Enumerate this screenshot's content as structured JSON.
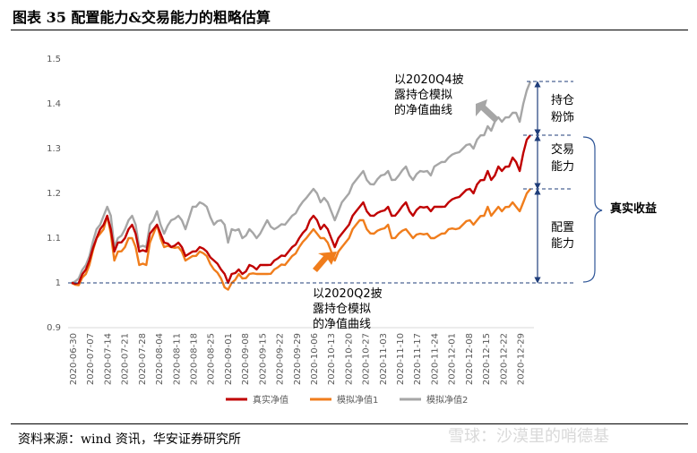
{
  "header": {
    "title": "图表 35  配置能力&交易能力的粗略估算"
  },
  "footer": {
    "source": "资料来源：wind 资讯，华安证券研究所",
    "watermark": "雪球：沙漠里的哨德基"
  },
  "chart_data": {
    "type": "line",
    "ylim": [
      0.9,
      1.5
    ],
    "yticks": [
      "0.9",
      "1",
      "1.1",
      "1.2",
      "1.3",
      "1.4",
      "1.5"
    ],
    "x_tick_labels": [
      "2020-06-30",
      "2020-07-07",
      "2020-07-14",
      "2020-07-21",
      "2020-07-28",
      "2020-08-04",
      "2020-08-11",
      "2020-08-18",
      "2020-08-25",
      "2020-09-01",
      "2020-09-08",
      "2020-09-15",
      "2020-09-22",
      "2020-09-29",
      "2020-10-06",
      "2020-10-13",
      "2020-10-20",
      "2020-10-27",
      "2020-11-03",
      "2020-11-10",
      "2020-11-17",
      "2020-11-24",
      "2020-12-01",
      "2020-12-08",
      "2020-12-15",
      "2020-12-22",
      "2020-12-29"
    ],
    "n_points": 130,
    "series": [
      {
        "name": "真实净值",
        "color": "#c00000",
        "anchors": [
          [
            0,
            1.0
          ],
          [
            2,
            1.0
          ],
          [
            4,
            1.03
          ],
          [
            5,
            1.05
          ],
          [
            7,
            1.1
          ],
          [
            8,
            1.12
          ],
          [
            9,
            1.13
          ],
          [
            10,
            1.15
          ],
          [
            11,
            1.12
          ],
          [
            12,
            1.07
          ],
          [
            13,
            1.09
          ],
          [
            15,
            1.1
          ],
          [
            16,
            1.12
          ],
          [
            17,
            1.13
          ],
          [
            18,
            1.11
          ],
          [
            19,
            1.07
          ],
          [
            21,
            1.07
          ],
          [
            22,
            1.11
          ],
          [
            23,
            1.12
          ],
          [
            24,
            1.13
          ],
          [
            25,
            1.11
          ],
          [
            26,
            1.09
          ],
          [
            28,
            1.08
          ],
          [
            30,
            1.09
          ],
          [
            31,
            1.08
          ],
          [
            32,
            1.06
          ],
          [
            34,
            1.07
          ],
          [
            36,
            1.08
          ],
          [
            38,
            1.07
          ],
          [
            40,
            1.05
          ],
          [
            42,
            1.03
          ],
          [
            43,
            1.02
          ],
          [
            44,
            1.0
          ],
          [
            45,
            1.02
          ],
          [
            47,
            1.03
          ],
          [
            48,
            1.02
          ],
          [
            50,
            1.04
          ],
          [
            52,
            1.03
          ],
          [
            53,
            1.04
          ],
          [
            55,
            1.04
          ],
          [
            57,
            1.05
          ],
          [
            60,
            1.06
          ],
          [
            62,
            1.08
          ],
          [
            64,
            1.1
          ],
          [
            66,
            1.12
          ],
          [
            67,
            1.14
          ],
          [
            68,
            1.15
          ],
          [
            69,
            1.14
          ],
          [
            70,
            1.12
          ],
          [
            71,
            1.13
          ],
          [
            72,
            1.12
          ],
          [
            73,
            1.1
          ],
          [
            74,
            1.08
          ],
          [
            75,
            1.1
          ],
          [
            76,
            1.11
          ],
          [
            77,
            1.12
          ],
          [
            78,
            1.13
          ],
          [
            79,
            1.15
          ],
          [
            80,
            1.16
          ],
          [
            81,
            1.17
          ],
          [
            82,
            1.18
          ],
          [
            83,
            1.16
          ],
          [
            85,
            1.15
          ],
          [
            87,
            1.16
          ],
          [
            89,
            1.17
          ],
          [
            90,
            1.15
          ],
          [
            92,
            1.16
          ],
          [
            94,
            1.18
          ],
          [
            95,
            1.16
          ],
          [
            96,
            1.15
          ],
          [
            98,
            1.17
          ],
          [
            100,
            1.17
          ],
          [
            101,
            1.16
          ],
          [
            102,
            1.17
          ],
          [
            104,
            1.17
          ],
          [
            106,
            1.18
          ],
          [
            108,
            1.19
          ],
          [
            110,
            1.2
          ],
          [
            112,
            1.21
          ],
          [
            113,
            1.2
          ],
          [
            114,
            1.22
          ],
          [
            116,
            1.23
          ],
          [
            117,
            1.25
          ],
          [
            118,
            1.23
          ],
          [
            119,
            1.24
          ],
          [
            120,
            1.26
          ],
          [
            121,
            1.25
          ],
          [
            123,
            1.26
          ],
          [
            124,
            1.28
          ],
          [
            125,
            1.27
          ],
          [
            126,
            1.25
          ],
          [
            127,
            1.29
          ],
          [
            128,
            1.32
          ],
          [
            129,
            1.33
          ]
        ]
      },
      {
        "name": "模拟净值1",
        "color": "#f07d1c",
        "anchors": [
          [
            0,
            1.0
          ],
          [
            2,
            0.995
          ],
          [
            4,
            1.02
          ],
          [
            5,
            1.04
          ],
          [
            7,
            1.1
          ],
          [
            8,
            1.11
          ],
          [
            9,
            1.12
          ],
          [
            10,
            1.15
          ],
          [
            11,
            1.11
          ],
          [
            12,
            1.05
          ],
          [
            13,
            1.07
          ],
          [
            15,
            1.08
          ],
          [
            16,
            1.1
          ],
          [
            17,
            1.1
          ],
          [
            18,
            1.08
          ],
          [
            19,
            1.04
          ],
          [
            21,
            1.04
          ],
          [
            22,
            1.09
          ],
          [
            23,
            1.11
          ],
          [
            24,
            1.13
          ],
          [
            25,
            1.1
          ],
          [
            26,
            1.08
          ],
          [
            28,
            1.08
          ],
          [
            30,
            1.08
          ],
          [
            31,
            1.07
          ],
          [
            32,
            1.05
          ],
          [
            34,
            1.06
          ],
          [
            36,
            1.07
          ],
          [
            38,
            1.06
          ],
          [
            40,
            1.03
          ],
          [
            42,
            1.01
          ],
          [
            43,
            0.99
          ],
          [
            44,
            0.985
          ],
          [
            45,
            1.0
          ],
          [
            47,
            1.02
          ],
          [
            48,
            1.01
          ],
          [
            50,
            1.02
          ],
          [
            52,
            1.02
          ],
          [
            53,
            1.02
          ],
          [
            55,
            1.02
          ],
          [
            57,
            1.03
          ],
          [
            60,
            1.04
          ],
          [
            62,
            1.06
          ],
          [
            64,
            1.08
          ],
          [
            66,
            1.1
          ],
          [
            67,
            1.11
          ],
          [
            68,
            1.12
          ],
          [
            69,
            1.11
          ],
          [
            70,
            1.1
          ],
          [
            71,
            1.1
          ],
          [
            72,
            1.09
          ],
          [
            73,
            1.07
          ],
          [
            74,
            1.05
          ],
          [
            75,
            1.07
          ],
          [
            76,
            1.08
          ],
          [
            77,
            1.09
          ],
          [
            78,
            1.1
          ],
          [
            79,
            1.12
          ],
          [
            80,
            1.13
          ],
          [
            81,
            1.14
          ],
          [
            82,
            1.14
          ],
          [
            83,
            1.12
          ],
          [
            85,
            1.11
          ],
          [
            87,
            1.12
          ],
          [
            89,
            1.13
          ],
          [
            90,
            1.1
          ],
          [
            92,
            1.11
          ],
          [
            94,
            1.12
          ],
          [
            95,
            1.11
          ],
          [
            96,
            1.1
          ],
          [
            98,
            1.11
          ],
          [
            100,
            1.11
          ],
          [
            101,
            1.1
          ],
          [
            102,
            1.1
          ],
          [
            104,
            1.11
          ],
          [
            106,
            1.12
          ],
          [
            108,
            1.12
          ],
          [
            110,
            1.13
          ],
          [
            112,
            1.14
          ],
          [
            113,
            1.13
          ],
          [
            114,
            1.14
          ],
          [
            116,
            1.15
          ],
          [
            117,
            1.17
          ],
          [
            118,
            1.15
          ],
          [
            119,
            1.16
          ],
          [
            120,
            1.17
          ],
          [
            121,
            1.16
          ],
          [
            123,
            1.17
          ],
          [
            124,
            1.18
          ],
          [
            125,
            1.17
          ],
          [
            126,
            1.16
          ],
          [
            127,
            1.18
          ],
          [
            128,
            1.2
          ],
          [
            129,
            1.21
          ]
        ]
      },
      {
        "name": "模拟净值2",
        "color": "#a6a6a6",
        "anchors": [
          [
            0,
            1.0
          ],
          [
            2,
            1.01
          ],
          [
            4,
            1.04
          ],
          [
            5,
            1.06
          ],
          [
            7,
            1.12
          ],
          [
            8,
            1.13
          ],
          [
            9,
            1.15
          ],
          [
            10,
            1.17
          ],
          [
            11,
            1.15
          ],
          [
            12,
            1.08
          ],
          [
            13,
            1.1
          ],
          [
            15,
            1.12
          ],
          [
            16,
            1.14
          ],
          [
            17,
            1.15
          ],
          [
            18,
            1.13
          ],
          [
            19,
            1.08
          ],
          [
            21,
            1.08
          ],
          [
            22,
            1.13
          ],
          [
            23,
            1.14
          ],
          [
            24,
            1.16
          ],
          [
            25,
            1.13
          ],
          [
            26,
            1.11
          ],
          [
            28,
            1.14
          ],
          [
            30,
            1.15
          ],
          [
            31,
            1.14
          ],
          [
            32,
            1.12
          ],
          [
            34,
            1.17
          ],
          [
            36,
            1.18
          ],
          [
            38,
            1.17
          ],
          [
            40,
            1.13
          ],
          [
            42,
            1.14
          ],
          [
            43,
            1.13
          ],
          [
            44,
            1.09
          ],
          [
            45,
            1.12
          ],
          [
            47,
            1.12
          ],
          [
            48,
            1.1
          ],
          [
            50,
            1.12
          ],
          [
            52,
            1.1
          ],
          [
            53,
            1.11
          ],
          [
            55,
            1.14
          ],
          [
            57,
            1.12
          ],
          [
            60,
            1.13
          ],
          [
            62,
            1.15
          ],
          [
            64,
            1.17
          ],
          [
            66,
            1.19
          ],
          [
            67,
            1.2
          ],
          [
            68,
            1.21
          ],
          [
            69,
            1.2
          ],
          [
            70,
            1.18
          ],
          [
            71,
            1.19
          ],
          [
            72,
            1.18
          ],
          [
            73,
            1.16
          ],
          [
            74,
            1.14
          ],
          [
            75,
            1.16
          ],
          [
            76,
            1.18
          ],
          [
            77,
            1.19
          ],
          [
            78,
            1.2
          ],
          [
            79,
            1.22
          ],
          [
            80,
            1.23
          ],
          [
            81,
            1.24
          ],
          [
            82,
            1.25
          ],
          [
            83,
            1.23
          ],
          [
            85,
            1.22
          ],
          [
            87,
            1.24
          ],
          [
            89,
            1.25
          ],
          [
            90,
            1.23
          ],
          [
            92,
            1.24
          ],
          [
            94,
            1.26
          ],
          [
            95,
            1.24
          ],
          [
            96,
            1.23
          ],
          [
            98,
            1.25
          ],
          [
            100,
            1.25
          ],
          [
            101,
            1.24
          ],
          [
            102,
            1.26
          ],
          [
            104,
            1.27
          ],
          [
            106,
            1.28
          ],
          [
            108,
            1.29
          ],
          [
            110,
            1.3
          ],
          [
            112,
            1.31
          ],
          [
            113,
            1.3
          ],
          [
            114,
            1.32
          ],
          [
            116,
            1.33
          ],
          [
            117,
            1.35
          ],
          [
            118,
            1.34
          ],
          [
            119,
            1.36
          ],
          [
            120,
            1.37
          ],
          [
            121,
            1.36
          ],
          [
            123,
            1.37
          ],
          [
            124,
            1.38
          ],
          [
            125,
            1.38
          ],
          [
            126,
            1.36
          ],
          [
            127,
            1.4
          ],
          [
            128,
            1.43
          ],
          [
            129,
            1.45
          ]
        ]
      }
    ],
    "annotations": {
      "q4_line1": "以2020Q4披",
      "q4_line2": "露持仓模拟",
      "q4_line3": "的净值曲线",
      "q2_line1": "以2020Q2披",
      "q2_line2": "露持仓模拟",
      "q2_line3": "的净值曲线",
      "chicang1": "持仓",
      "chicang2": "粉饰",
      "jiaoyi1": "交易",
      "jiaoyi2": "能力",
      "peizhi1": "配置",
      "peizhi2": "能力",
      "zhenshi": "真实收益"
    },
    "reference_levels": [
      1.45,
      1.33,
      1.21,
      1.0
    ]
  }
}
